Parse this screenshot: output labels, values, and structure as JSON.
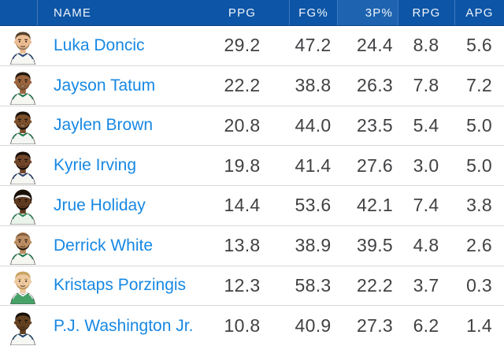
{
  "theme": {
    "header_bg": "#0d55a6",
    "header_highlight_bg": "#1d63af",
    "header_divider": "#3f78bc",
    "header_text": "#eef4fb",
    "row_divider": "#d8d8da",
    "row_bg": "#ffffff",
    "name_color": "#1788e3",
    "stat_color": "#414144"
  },
  "table": {
    "columns": [
      {
        "key": "avatar",
        "label": ""
      },
      {
        "key": "name",
        "label": "NAME"
      },
      {
        "key": "ppg",
        "label": "PPG"
      },
      {
        "key": "fg",
        "label": "FG%"
      },
      {
        "key": "tp",
        "label": "3P%",
        "highlighted": true
      },
      {
        "key": "rpg",
        "label": "RPG"
      },
      {
        "key": "apg",
        "label": "APG"
      }
    ],
    "rows": [
      {
        "name": "Luka Doncic",
        "ppg": "29.2",
        "fg": "47.2",
        "tp": "24.4",
        "rpg": "8.8",
        "apg": "5.6",
        "avatar": {
          "icon": "player-portrait-icon",
          "skin": "#ecbd92",
          "hair": "short",
          "hair_color": "#56432e",
          "brow": "#4a3826",
          "beard": "rgba(90,70,45,0.55)",
          "jersey": "#f6f6f3",
          "trim": "#1c3e7d",
          "headband": false,
          "smile": false
        }
      },
      {
        "name": "Jayson Tatum",
        "ppg": "22.2",
        "fg": "38.8",
        "tp": "26.3",
        "rpg": "7.8",
        "apg": "7.2",
        "avatar": {
          "icon": "player-portrait-icon",
          "skin": "#9a653e",
          "hair": "short",
          "hair_color": "#241a10",
          "brow": "#1c130b",
          "beard": "rgba(30,20,12,0.35)",
          "jersey": "#f6f6f3",
          "trim": "#0d7a40",
          "headband": false,
          "smile": true
        }
      },
      {
        "name": "Jaylen Brown",
        "ppg": "20.8",
        "fg": "44.0",
        "tp": "23.5",
        "rpg": "5.4",
        "apg": "5.0",
        "avatar": {
          "icon": "player-portrait-icon",
          "skin": "#7c4f2b",
          "hair": "short",
          "hair_color": "#1d140c",
          "brow": "#17100a",
          "beard": "#17100a",
          "jersey": "#f4f6f3",
          "trim": "#0d7a40",
          "headband": false,
          "smile": true
        }
      },
      {
        "name": "Kyrie Irving",
        "ppg": "19.8",
        "fg": "41.4",
        "tp": "27.6",
        "rpg": "3.0",
        "apg": "5.0",
        "avatar": {
          "icon": "player-portrait-icon",
          "skin": "#71462a",
          "hair": "short",
          "hair_color": "#181009",
          "brow": "#120d07",
          "beard": "#130e08",
          "jersey": "#f6f6f3",
          "trim": "#1a3668",
          "headband": false,
          "smile": false
        }
      },
      {
        "name": "Jrue Holiday",
        "ppg": "14.4",
        "fg": "53.6",
        "tp": "42.1",
        "rpg": "7.4",
        "apg": "3.8",
        "avatar": {
          "icon": "player-portrait-icon",
          "skin": "#603b20",
          "hair": "afro",
          "hair_color": "#1a1108",
          "brow": "#140d07",
          "beard": "#140d07",
          "jersey": "#eaf3ec",
          "trim": "#1e8a4f",
          "headband": true,
          "smile": false
        }
      },
      {
        "name": "Derrick White",
        "ppg": "13.8",
        "fg": "38.9",
        "tp": "39.5",
        "rpg": "4.8",
        "apg": "2.6",
        "avatar": {
          "icon": "player-portrait-icon",
          "skin": "#bb8d62",
          "hair": "bald",
          "hair_color": "#2c1d10",
          "brow": "#2c1d10",
          "beard": "#2a1b0e",
          "jersey": "#f6f6f3",
          "trim": "#0d7a40",
          "headband": false,
          "smile": false
        }
      },
      {
        "name": "Kristaps Porzingis",
        "ppg": "12.3",
        "fg": "58.3",
        "tp": "22.2",
        "rpg": "3.7",
        "apg": "0.3",
        "avatar": {
          "icon": "player-portrait-icon",
          "skin": "#eec9a0",
          "hair": "short",
          "hair_color": "#c8a462",
          "brow": "#b08c4e",
          "beard": "#c09a5e",
          "jersey": "#47a268",
          "trim": "#ffffff",
          "headband": false,
          "smile": false
        }
      },
      {
        "name": "P.J. Washington Jr.",
        "ppg": "10.8",
        "fg": "40.9",
        "tp": "27.3",
        "rpg": "6.2",
        "apg": "1.4",
        "avatar": {
          "icon": "player-portrait-icon",
          "skin": "#644120",
          "hair": "short",
          "hair_color": "#150e07",
          "brow": "#110b06",
          "beard": "rgba(20,13,7,0.4)",
          "jersey": "#f6f6f3",
          "trim": "#15406e",
          "headband": false,
          "smile": false
        }
      }
    ]
  }
}
